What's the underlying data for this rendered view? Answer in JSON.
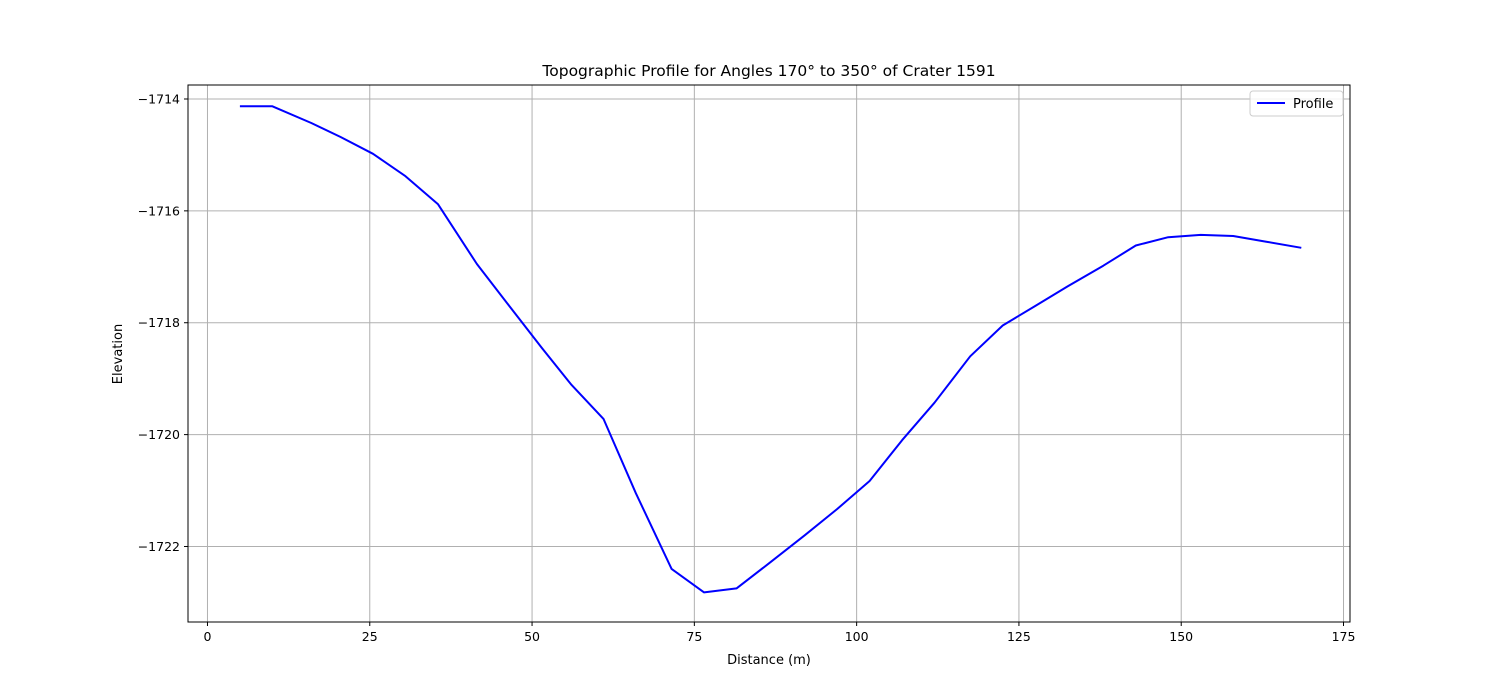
{
  "chart_data": {
    "type": "line",
    "title": "Topographic Profile for Angles 170° to 350° of Crater 1591",
    "xlabel": "Distance (m)",
    "ylabel": "Elevation",
    "xlim": [
      -3,
      176
    ],
    "ylim": [
      -1723.35,
      -1713.75
    ],
    "xticks": [
      0,
      25,
      50,
      75,
      100,
      125,
      150,
      175
    ],
    "xtick_labels": [
      "0",
      "25",
      "50",
      "75",
      "100",
      "125",
      "150",
      "175"
    ],
    "yticks": [
      -1714,
      -1716,
      -1718,
      -1720,
      -1722
    ],
    "ytick_labels": [
      "−1714",
      "−1716",
      "−1718",
      "−1720",
      "−1722"
    ],
    "grid": true,
    "legend_position": "top-right",
    "colors": {
      "series": "#0000ff",
      "grid": "#b0b0b0",
      "axes": "#000000"
    },
    "series": [
      {
        "name": "Profile",
        "x": [
          5.0,
          10.0,
          16.0,
          20.5,
          25.5,
          30.5,
          35.5,
          41.5,
          46.5,
          51.5,
          56.0,
          61.0,
          66.0,
          71.5,
          76.5,
          81.5,
          86.5,
          92.0,
          97.0,
          102.0,
          107.0,
          112.0,
          117.5,
          122.5,
          127.5,
          132.5,
          138.0,
          143.0,
          148.0,
          153.0,
          158.0,
          163.0,
          168.5
        ],
        "y": [
          -1714.13,
          -1714.13,
          -1714.43,
          -1714.68,
          -1714.98,
          -1715.38,
          -1715.88,
          -1716.95,
          -1717.7,
          -1718.45,
          -1719.1,
          -1719.72,
          -1721.05,
          -1722.4,
          -1722.82,
          -1722.75,
          -1722.3,
          -1721.8,
          -1721.33,
          -1720.83,
          -1720.1,
          -1719.43,
          -1718.6,
          -1718.05,
          -1717.7,
          -1717.35,
          -1716.98,
          -1716.62,
          -1716.47,
          -1716.43,
          -1716.45,
          -1716.55,
          -1716.66
        ]
      }
    ]
  }
}
